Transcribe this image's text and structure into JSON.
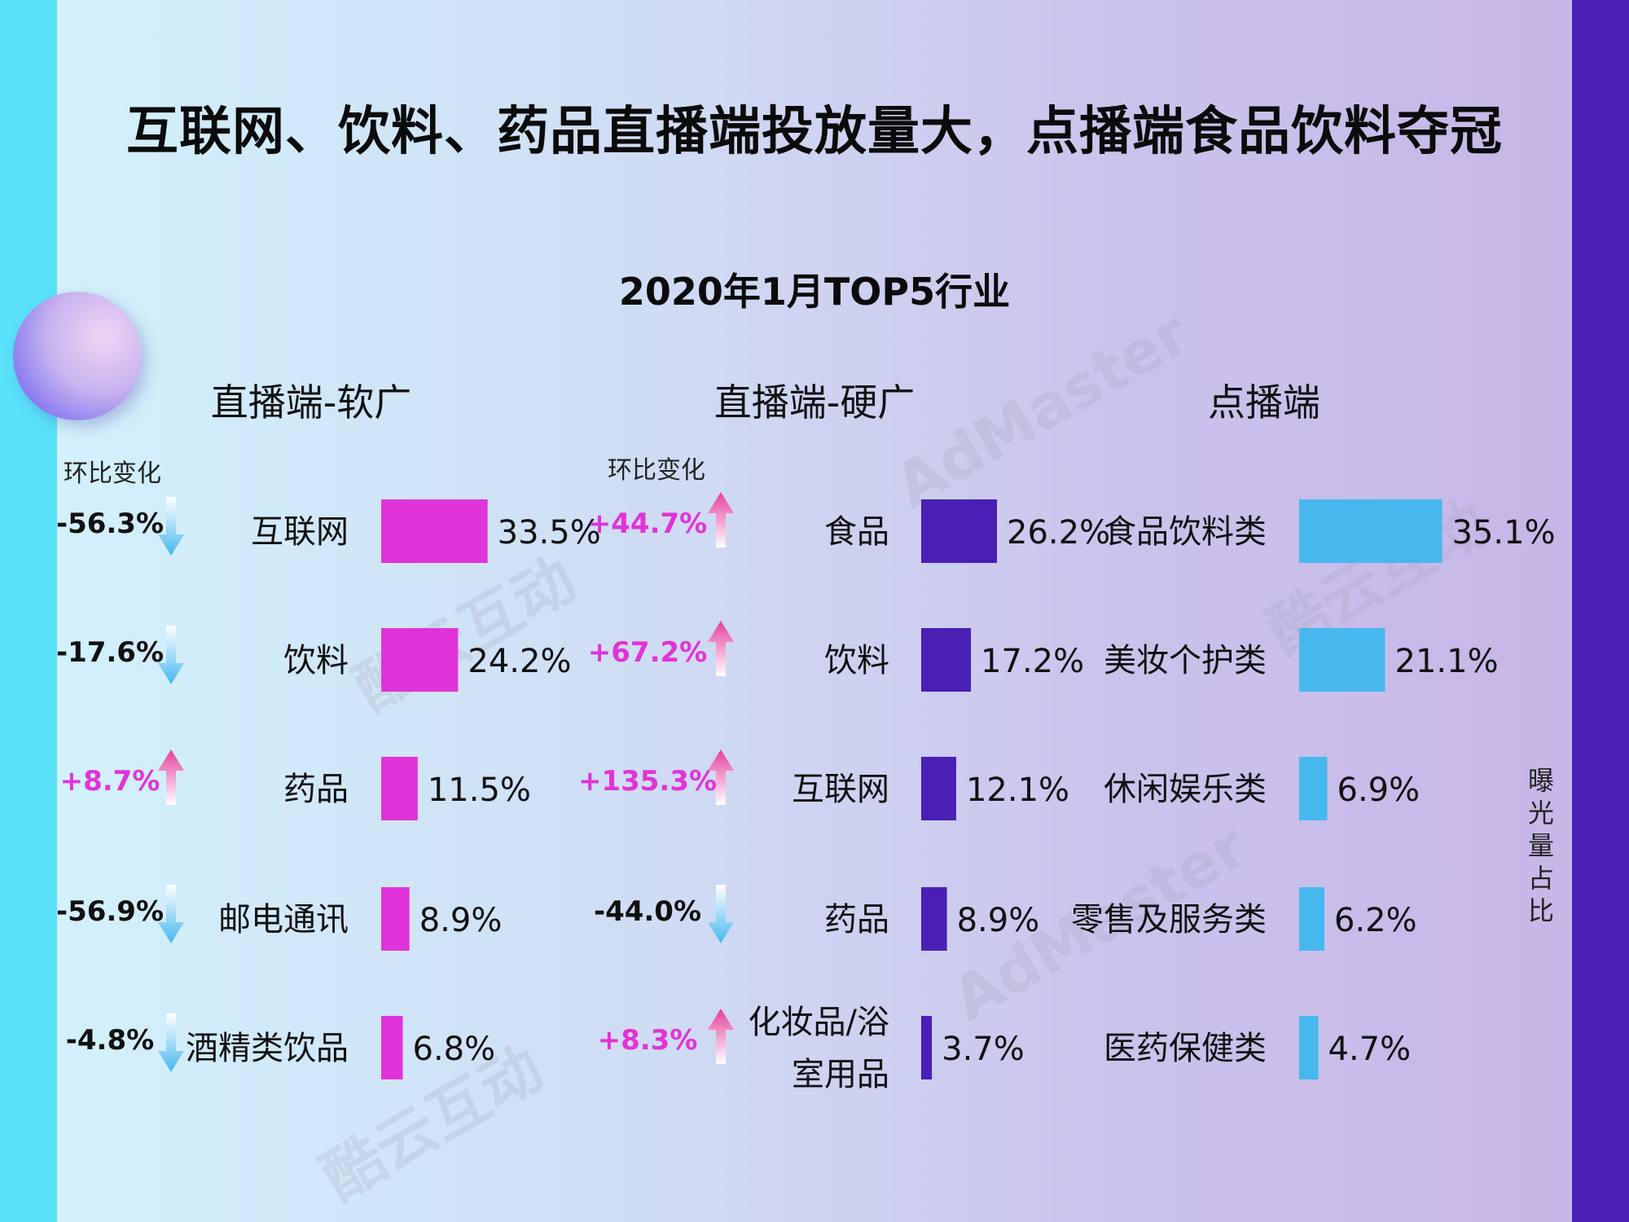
{
  "title": "互联网、饮料、药品直播端投放量大，点播端食品饮料夺冠",
  "subtitle": "2020年1月TOP5行业",
  "change_header": "环比变化",
  "side_label": "曝光量占比",
  "watermarks": [
    "AdMaster",
    "酷云互动"
  ],
  "colors": {
    "live_soft": "#e033d9",
    "live_hard": "#4a1fb4",
    "vod": "#46b8ee",
    "change_up": "#e033d9",
    "change_down": "#111111",
    "arrow_up": "#e5409c",
    "arrow_down": "#46b8ee"
  },
  "chart_data": [
    {
      "type": "bar",
      "title": "直播端-软广",
      "categories": [
        "互联网",
        "饮料",
        "药品",
        "邮电通讯",
        "酒精类饮品"
      ],
      "values": [
        33.5,
        24.2,
        11.5,
        8.9,
        6.8
      ],
      "value_labels": [
        "33.5%",
        "24.2%",
        "11.5%",
        "8.9%",
        "6.8%"
      ],
      "changes": [
        "-56.3%",
        "-17.6%",
        "+8.7%",
        "-56.9%",
        "-4.8%"
      ],
      "change_direction": [
        "down",
        "down",
        "up",
        "down",
        "down"
      ]
    },
    {
      "type": "bar",
      "title": "直播端-硬广",
      "categories": [
        "食品",
        "饮料",
        "互联网",
        "药品",
        "化妆品/浴室用品"
      ],
      "category_lines": [
        [
          "食品"
        ],
        [
          "饮料"
        ],
        [
          "互联网"
        ],
        [
          "药品"
        ],
        [
          "化妆品/浴",
          "室用品"
        ]
      ],
      "values": [
        26.2,
        17.2,
        12.1,
        8.9,
        3.7
      ],
      "value_labels": [
        "26.2%",
        "17.2%",
        "12.1%",
        "8.9%",
        "3.7%"
      ],
      "changes": [
        "+44.7%",
        "+67.2%",
        "+135.3%",
        "-44.0%",
        "+8.3%"
      ],
      "change_direction": [
        "up",
        "up",
        "up",
        "down",
        "up"
      ]
    },
    {
      "type": "bar",
      "title": "点播端",
      "categories": [
        "食品饮料类",
        "美妆个护类",
        "休闲娱乐类",
        "零售及服务类",
        "医药保健类"
      ],
      "values": [
        35.1,
        21.1,
        6.9,
        6.2,
        4.7
      ],
      "value_labels": [
        "35.1%",
        "21.1%",
        "6.9%",
        "6.2%",
        "4.7%"
      ]
    }
  ]
}
